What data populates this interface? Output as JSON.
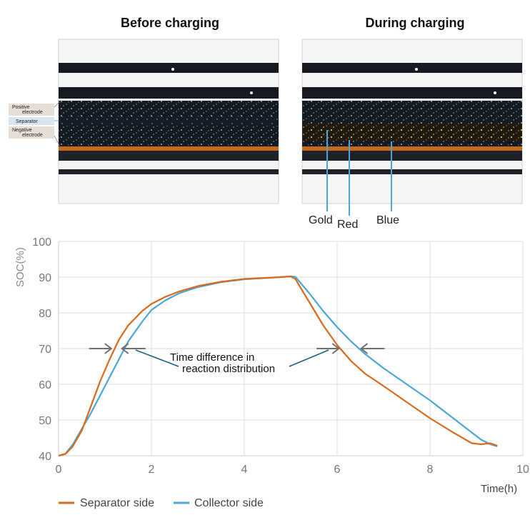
{
  "panels": {
    "before_title": "Before charging",
    "during_title": "During charging",
    "electrode_labels": {
      "positive_line1": "Positive",
      "positive_line2": "electrode",
      "separator": "Separator",
      "negative_line1": "Negative",
      "negative_line2": "electrode"
    },
    "color_labels": [
      "Gold",
      "Red",
      "Blue"
    ]
  },
  "chart_data": {
    "type": "line",
    "ylabel": "SOC(%)",
    "xlabel": "Time(h)",
    "xlim": [
      0,
      10
    ],
    "ylim": [
      40,
      100
    ],
    "xticks": [
      "0",
      "2",
      "4",
      "6",
      "8",
      "10"
    ],
    "yticks": [
      "40",
      "50",
      "60",
      "70",
      "80",
      "90",
      "100"
    ],
    "grid": true,
    "legend_position": "bottom-left",
    "annotation": {
      "line1": "Time difference in",
      "line2": "reaction distribution",
      "level_y": 70,
      "charge_gap_x": [
        1.15,
        1.35
      ],
      "discharge_gap_x": [
        6.05,
        6.5
      ]
    },
    "series": [
      {
        "name": "Separator side",
        "color": "#d86a1c",
        "x": [
          0,
          0.15,
          0.3,
          0.5,
          0.7,
          0.9,
          1.1,
          1.3,
          1.5,
          1.8,
          2.0,
          2.3,
          2.6,
          3.0,
          3.5,
          4.0,
          4.5,
          5.0,
          5.1,
          5.4,
          5.7,
          6.0,
          6.3,
          6.6,
          7.0,
          7.5,
          8.0,
          8.5,
          8.9,
          9.1,
          9.3,
          9.45
        ],
        "y": [
          40,
          40.5,
          42.5,
          47,
          54,
          61,
          67,
          72.5,
          76.5,
          80.5,
          82.5,
          84.5,
          86,
          87.5,
          88.7,
          89.5,
          89.8,
          90.2,
          89.5,
          83,
          76.5,
          71,
          66.5,
          63,
          59.5,
          55,
          50.5,
          46.5,
          43.5,
          43.2,
          43.5,
          42.8
        ]
      },
      {
        "name": "Collector side",
        "color": "#4aa6d6",
        "x": [
          0,
          0.15,
          0.3,
          0.5,
          0.7,
          0.9,
          1.1,
          1.3,
          1.5,
          1.8,
          2.0,
          2.3,
          2.6,
          3.0,
          3.5,
          4.0,
          4.5,
          5.0,
          5.1,
          5.4,
          5.7,
          6.0,
          6.3,
          6.6,
          7.0,
          7.5,
          8.0,
          8.5,
          8.9,
          9.1,
          9.3,
          9.45
        ],
        "y": [
          40,
          40.6,
          43,
          47.5,
          52,
          57,
          62,
          67,
          72,
          77.5,
          80.8,
          83.5,
          85.5,
          87.2,
          88.6,
          89.4,
          89.8,
          90.2,
          90.1,
          85.5,
          80.5,
          76,
          72,
          68.5,
          64.5,
          60,
          55.5,
          50.5,
          46.5,
          44.5,
          43.2,
          42.6
        ]
      }
    ]
  }
}
